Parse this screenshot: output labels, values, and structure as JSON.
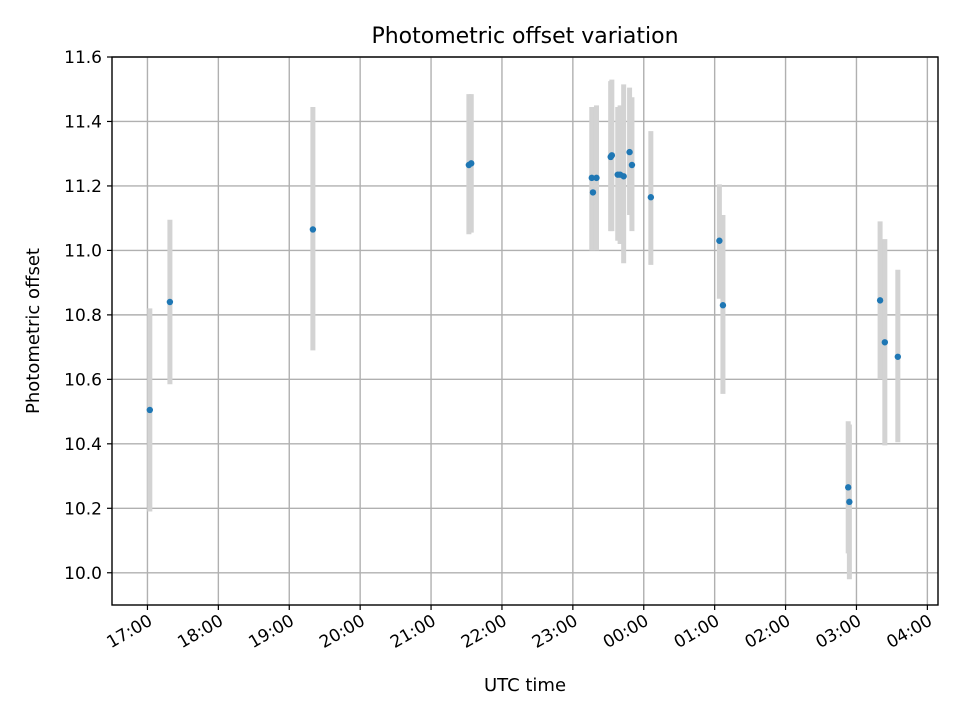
{
  "chart_data": {
    "type": "scatter",
    "title": "Photometric offset variation",
    "xlabel": "UTC time",
    "ylabel": "Photometric offset",
    "x_axis": "time",
    "xlim_hours": [
      16.5,
      28.15
    ],
    "ylim": [
      9.9,
      11.6
    ],
    "yticks": [
      10.0,
      10.2,
      10.4,
      10.6,
      10.8,
      11.0,
      11.2,
      11.4,
      11.6
    ],
    "ytick_labels": [
      "10.0",
      "10.2",
      "10.4",
      "10.6",
      "10.8",
      "11.0",
      "11.2",
      "11.4",
      "11.6"
    ],
    "xticks_hours": [
      17,
      18,
      19,
      20,
      21,
      22,
      23,
      24,
      25,
      26,
      27,
      28
    ],
    "xtick_labels": [
      "17:00",
      "18:00",
      "19:00",
      "20:00",
      "21:00",
      "22:00",
      "23:00",
      "00:00",
      "01:00",
      "02:00",
      "03:00",
      "04:00"
    ],
    "grid": true,
    "colors": {
      "points": "#1f77b4",
      "error_bars": "#d3d3d3",
      "grid": "#b0b0b0"
    },
    "points": [
      {
        "time": "17:02",
        "y": 10.505,
        "ylo": 10.19,
        "yhi": 10.82
      },
      {
        "time": "17:19",
        "y": 10.84,
        "ylo": 10.585,
        "yhi": 11.095
      },
      {
        "time": "19:20",
        "y": 11.065,
        "ylo": 10.69,
        "yhi": 11.445
      },
      {
        "time": "21:32",
        "y": 11.265,
        "ylo": 11.05,
        "yhi": 11.485
      },
      {
        "time": "21:34",
        "y": 11.27,
        "ylo": 11.055,
        "yhi": 11.485
      },
      {
        "time": "23:16",
        "y": 11.225,
        "ylo": 11.0,
        "yhi": 11.445
      },
      {
        "time": "23:17",
        "y": 11.18,
        "ylo": 11.0,
        "yhi": 11.44
      },
      {
        "time": "23:20",
        "y": 11.225,
        "ylo": 11.0,
        "yhi": 11.45
      },
      {
        "time": "23:32",
        "y": 11.29,
        "ylo": 11.06,
        "yhi": 11.525
      },
      {
        "time": "23:33",
        "y": 11.295,
        "ylo": 11.06,
        "yhi": 11.53
      },
      {
        "time": "23:38",
        "y": 11.235,
        "ylo": 11.03,
        "yhi": 11.445
      },
      {
        "time": "23:40",
        "y": 11.235,
        "ylo": 11.02,
        "yhi": 11.45
      },
      {
        "time": "23:43",
        "y": 11.23,
        "ylo": 10.96,
        "yhi": 11.515
      },
      {
        "time": "23:48",
        "y": 11.305,
        "ylo": 11.11,
        "yhi": 11.505
      },
      {
        "time": "23:50",
        "y": 11.265,
        "ylo": 11.06,
        "yhi": 11.475
      },
      {
        "time": "00:06",
        "y": 11.165,
        "ylo": 10.955,
        "yhi": 11.37
      },
      {
        "time": "01:04",
        "y": 11.03,
        "ylo": 10.85,
        "yhi": 11.205
      },
      {
        "time": "01:07",
        "y": 10.83,
        "ylo": 10.555,
        "yhi": 11.11
      },
      {
        "time": "02:53",
        "y": 10.265,
        "ylo": 10.06,
        "yhi": 10.47
      },
      {
        "time": "02:54",
        "y": 10.22,
        "ylo": 9.98,
        "yhi": 10.46
      },
      {
        "time": "03:20",
        "y": 10.845,
        "ylo": 10.6,
        "yhi": 11.09
      },
      {
        "time": "03:24",
        "y": 10.715,
        "ylo": 10.395,
        "yhi": 11.035
      },
      {
        "time": "03:35",
        "y": 10.67,
        "ylo": 10.405,
        "yhi": 10.94
      }
    ]
  }
}
